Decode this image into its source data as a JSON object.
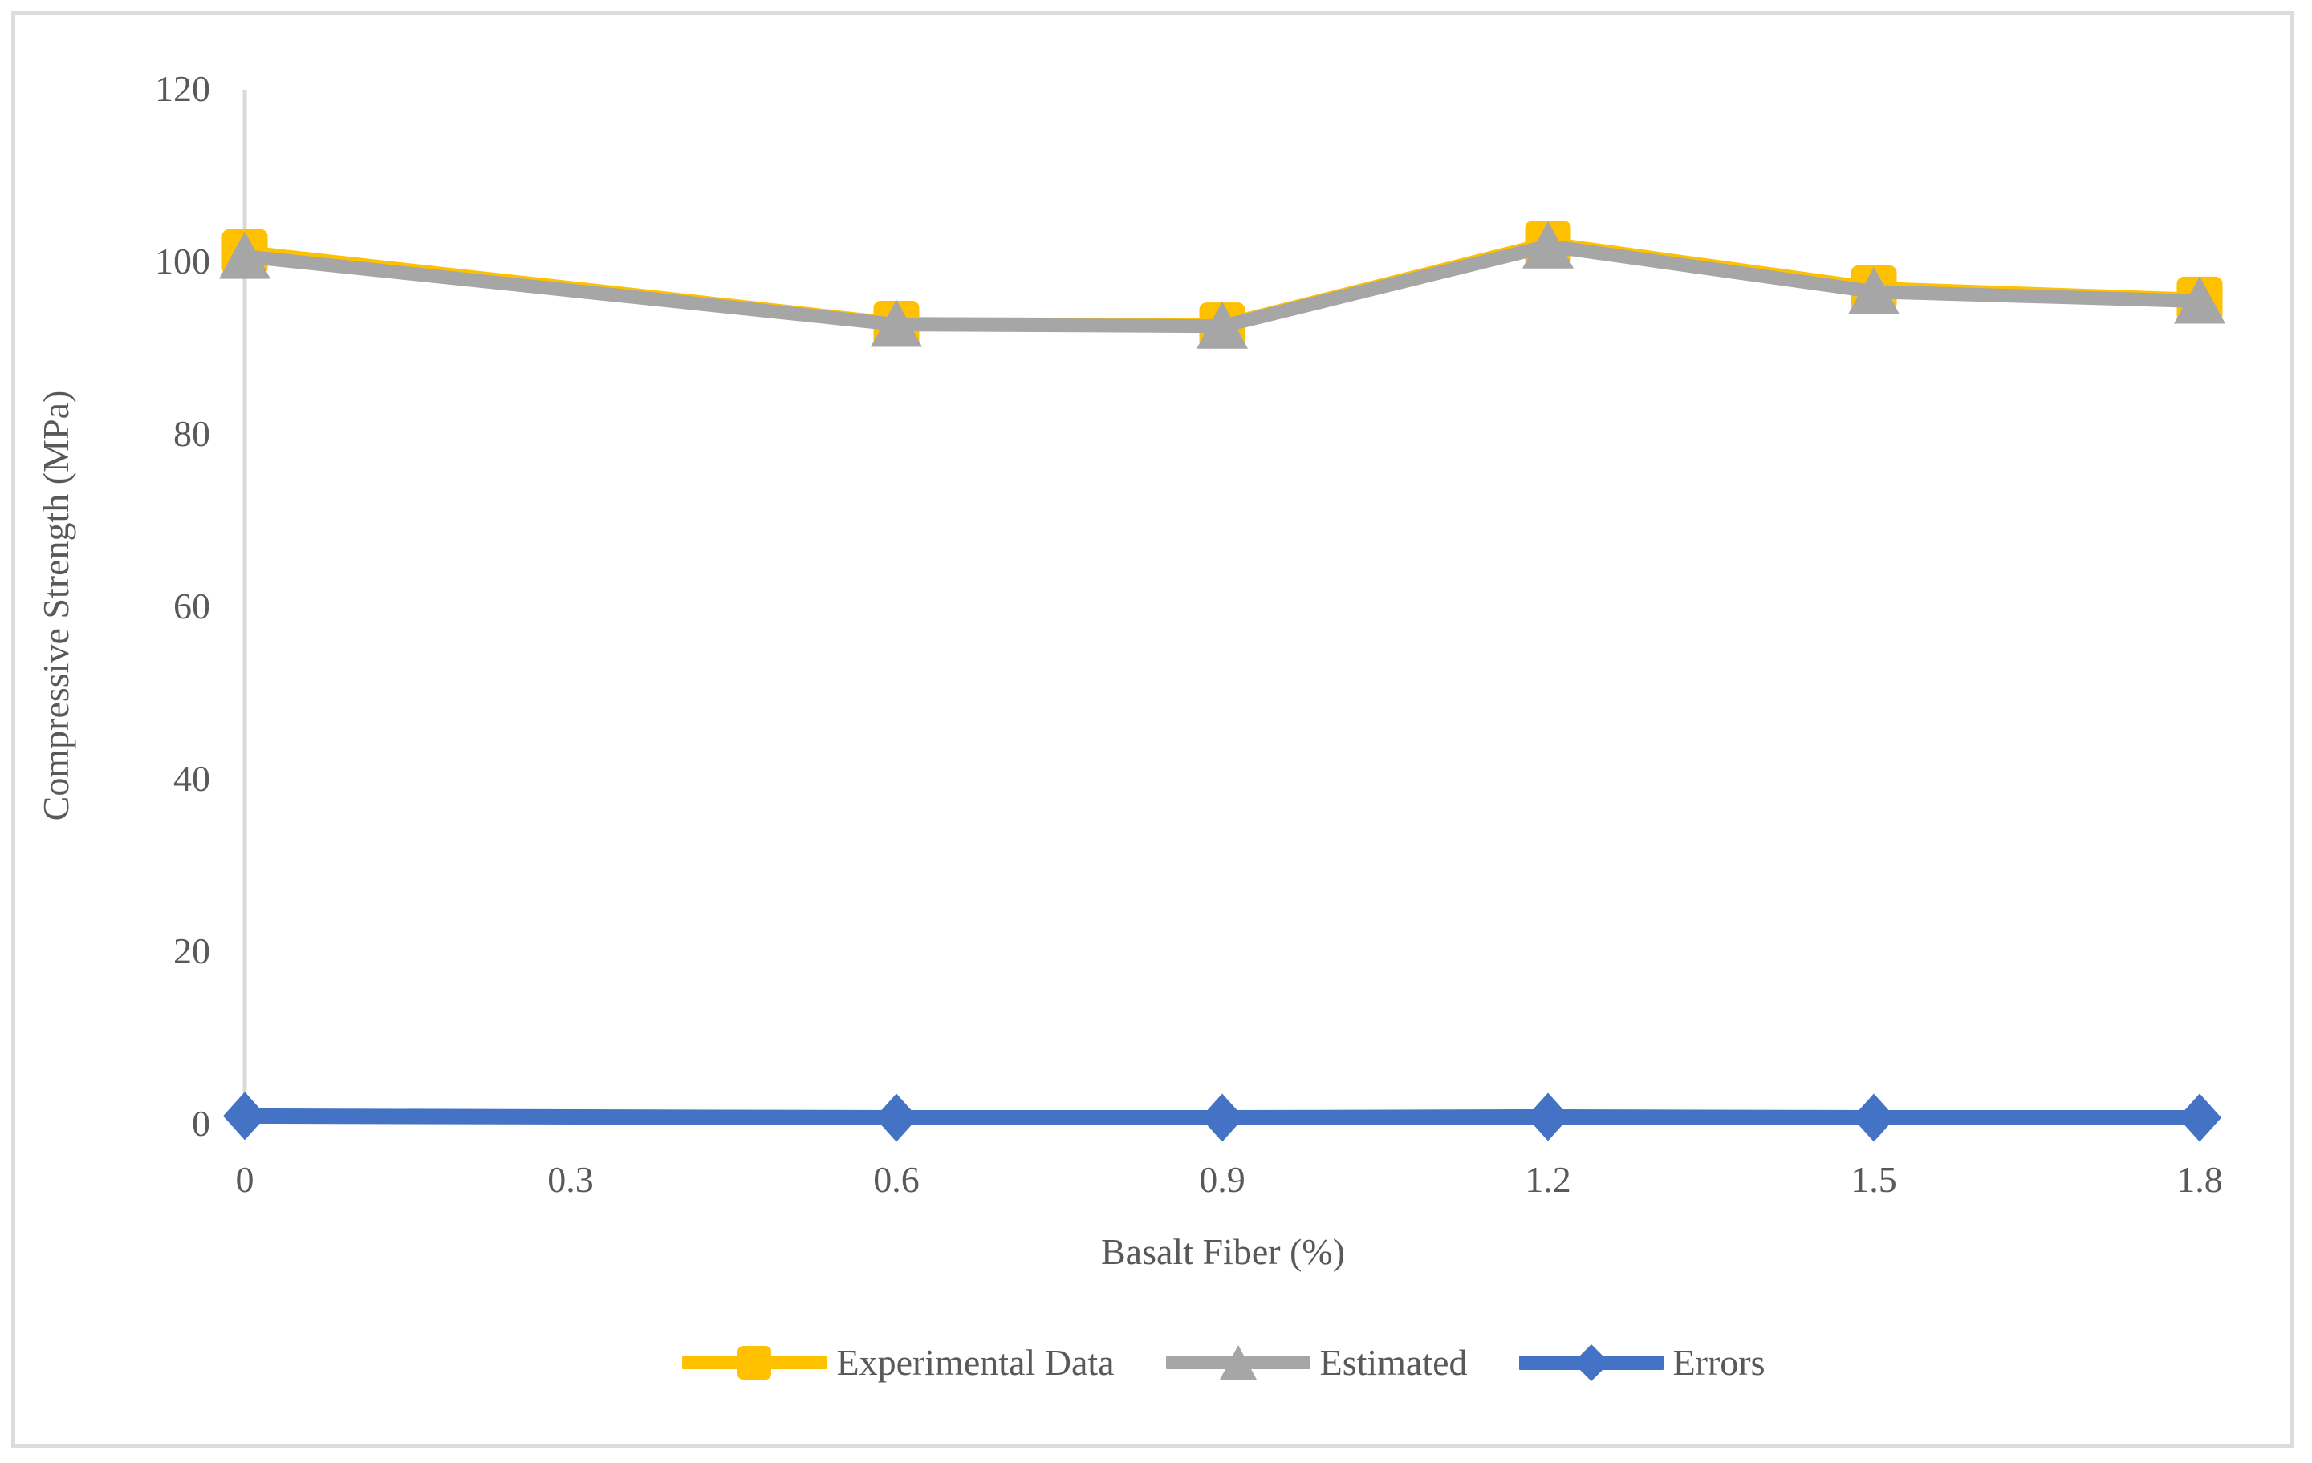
{
  "chart_data": {
    "type": "line",
    "title": "",
    "xlabel": "Basalt Fiber (%)",
    "ylabel": "Compressive Strength (MPa)",
    "x": [
      0,
      0.6,
      0.9,
      1.2,
      1.5,
      1.8
    ],
    "x_tick_labels": [
      "0",
      "0.3",
      "0.6",
      "0.9",
      "1.2",
      "1.5",
      "1.8"
    ],
    "x_ticks": [
      0,
      0.3,
      0.6,
      0.9,
      1.2,
      1.5,
      1.8
    ],
    "xlim": [
      0,
      1.86
    ],
    "y_ticks": [
      0,
      20,
      40,
      60,
      80,
      100,
      120
    ],
    "y_tick_labels": [
      "0",
      "20",
      "40",
      "60",
      "80",
      "100",
      "120"
    ],
    "ylim": [
      0,
      120
    ],
    "grid": false,
    "legend_position": "bottom",
    "series": [
      {
        "name": "Experimental Data",
        "marker": "square",
        "color": "#FFC000",
        "values": [
          101.0,
          92.7,
          92.5,
          102.0,
          96.8,
          95.5
        ]
      },
      {
        "name": "Estimated",
        "marker": "triangle",
        "color": "#A6A6A6",
        "values": [
          100.5,
          92.6,
          92.4,
          101.7,
          96.4,
          95.3
        ]
      },
      {
        "name": "Errors",
        "marker": "diamond",
        "color": "#4472C4",
        "values": [
          0.8,
          0.6,
          0.6,
          0.7,
          0.6,
          0.6
        ]
      }
    ],
    "colors": {
      "axis_line": "#D9D9D9",
      "tick_text": "#595959",
      "figure_border": "#DCDCDC",
      "background": "#FFFFFF"
    }
  }
}
